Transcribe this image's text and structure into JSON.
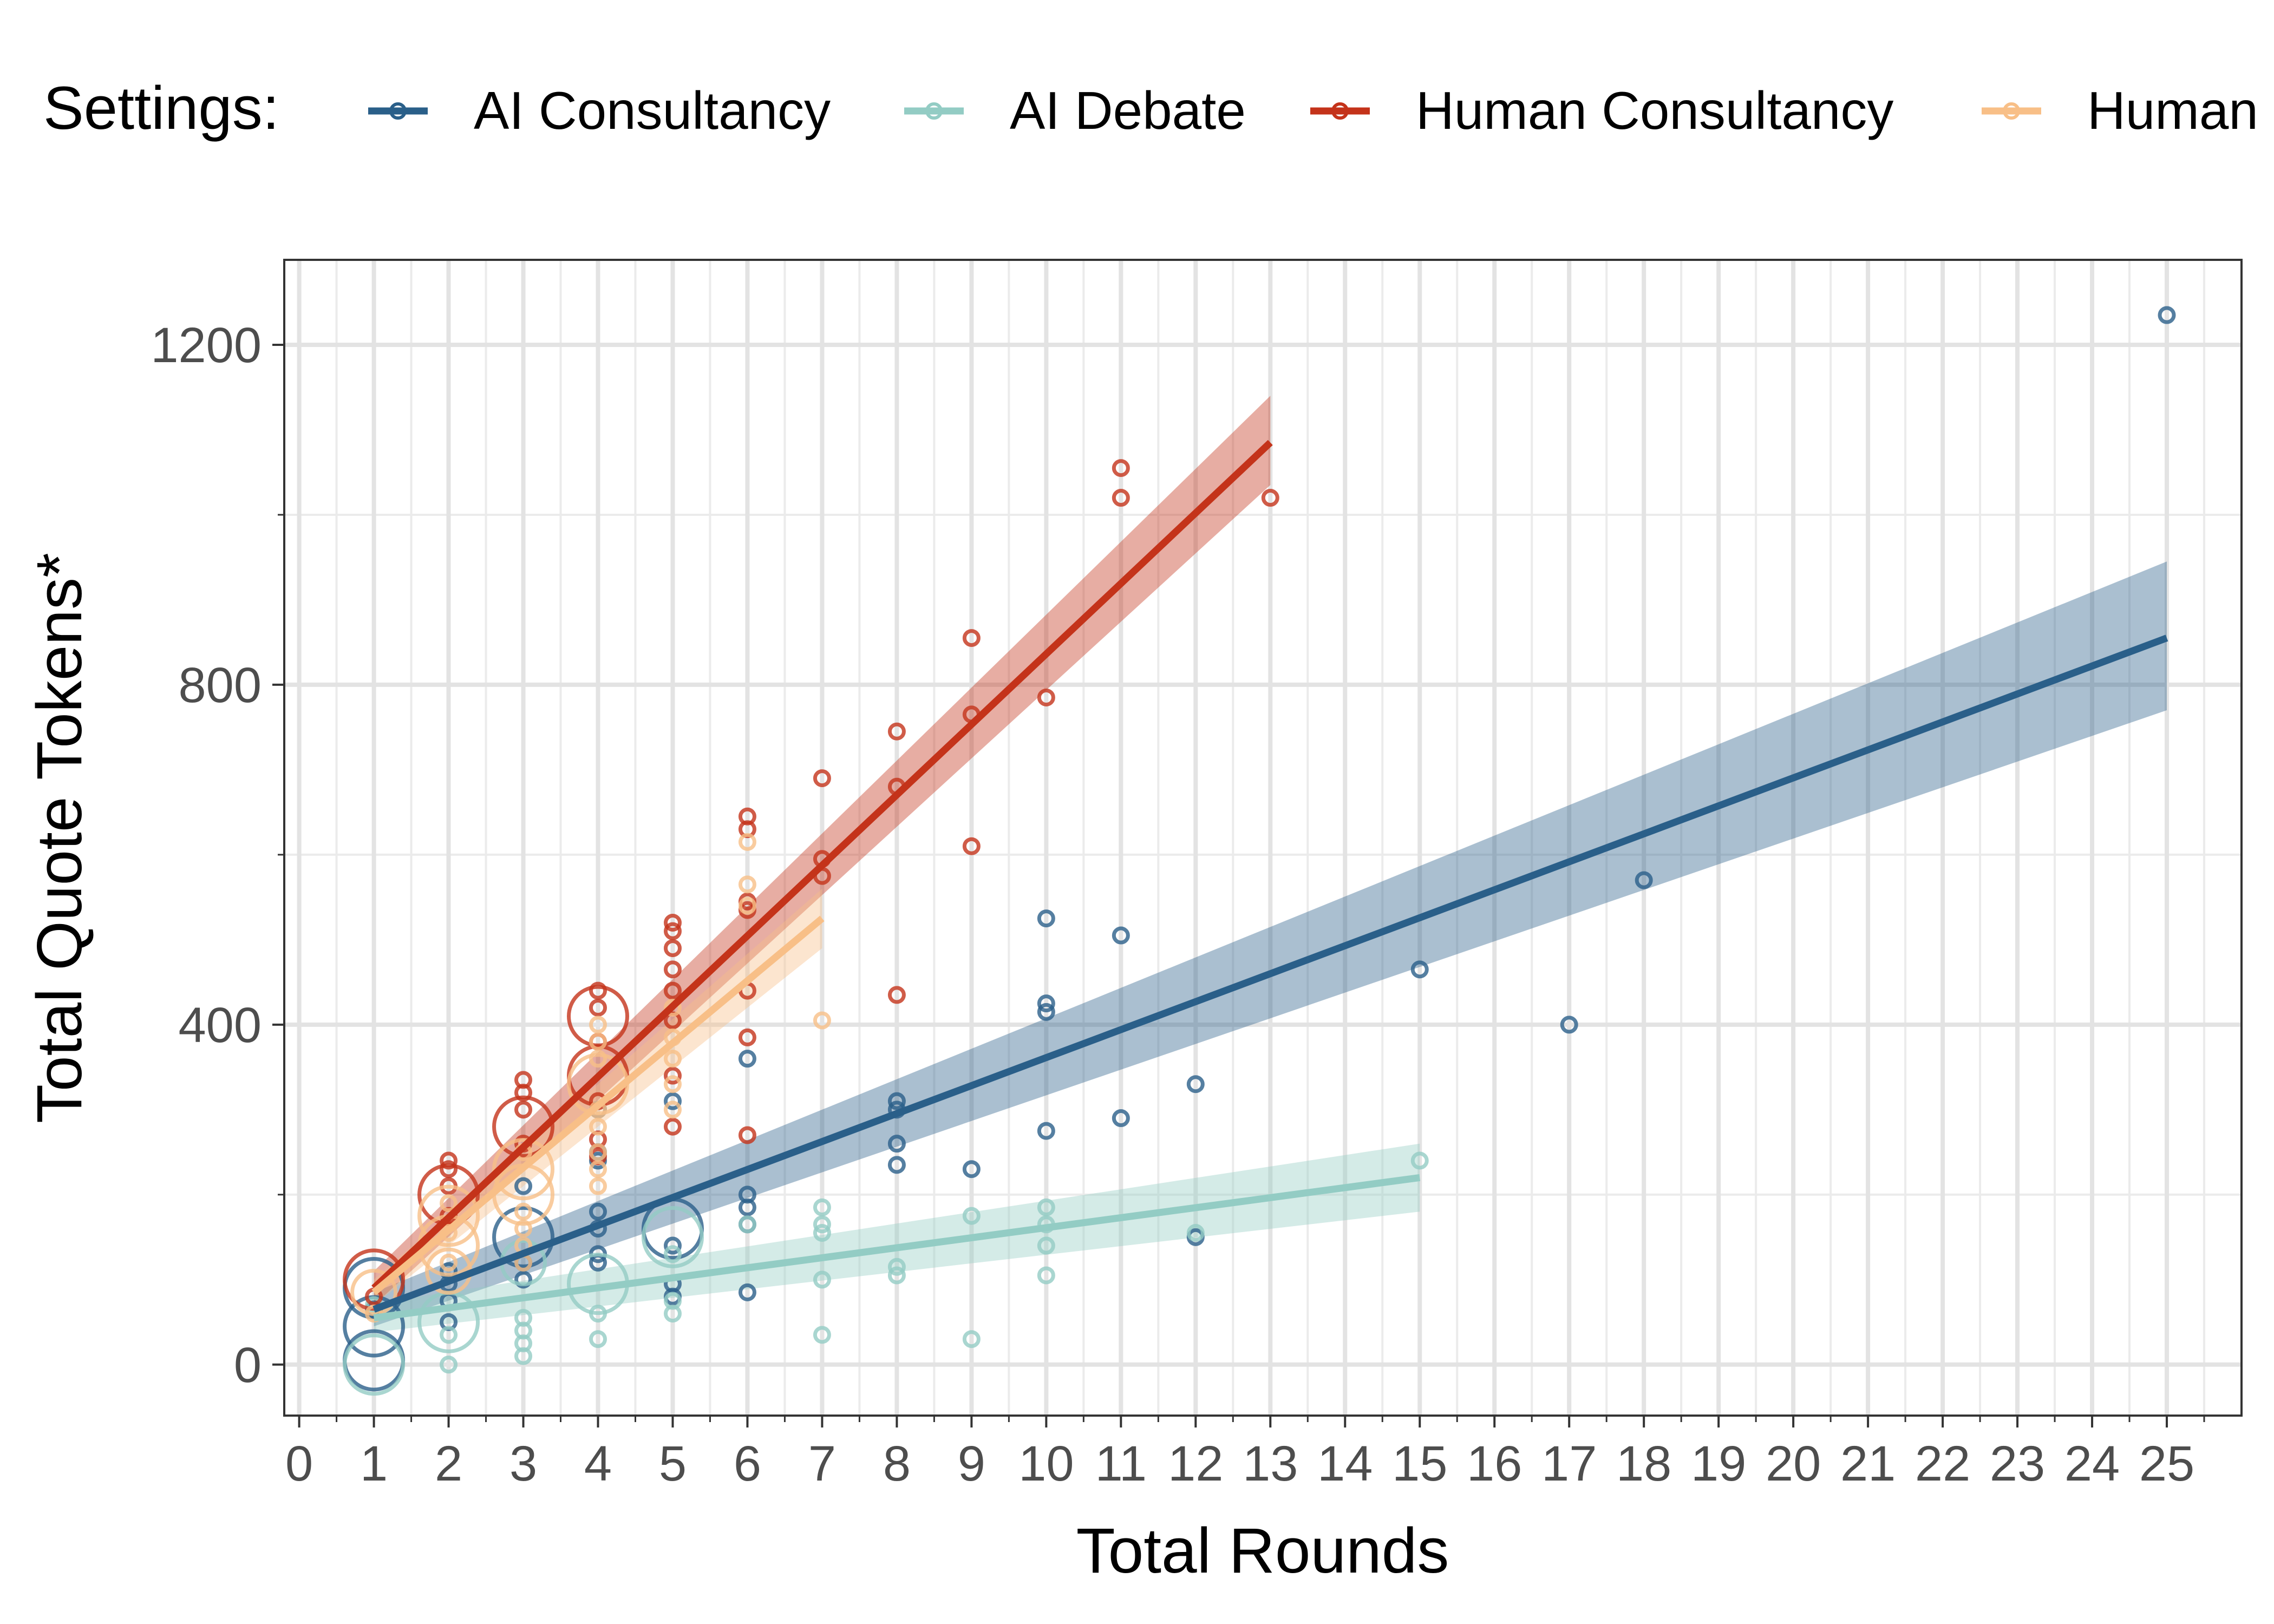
{
  "legend": {
    "title": "Settings:",
    "position": "top",
    "items": [
      {
        "label": "AI Consultancy",
        "color": "#2a5f89"
      },
      {
        "label": "AI Debate",
        "color": "#93ccc4"
      },
      {
        "label": "Human Consultancy",
        "color": "#c4331a"
      },
      {
        "label": "Human",
        "color": "#f8bf87"
      }
    ]
  },
  "chart_data": {
    "type": "scatter",
    "xlabel": "Total Rounds",
    "ylabel": "Total Quote Tokens*",
    "xlim": [
      -0.2,
      26
    ],
    "ylim": [
      -60,
      1300
    ],
    "x_ticks": [
      "0",
      "1",
      "2",
      "3",
      "4",
      "5",
      "6",
      "7",
      "8",
      "9",
      "10",
      "11",
      "12",
      "13",
      "14",
      "15",
      "16",
      "17",
      "18",
      "19",
      "20",
      "21",
      "22",
      "23",
      "24",
      "25"
    ],
    "y_ticks": [
      0,
      400,
      800,
      1200
    ],
    "grid": true,
    "series": [
      {
        "name": "AI Consultancy",
        "color": "#2a5f89",
        "fit": {
          "x": [
            1,
            25
          ],
          "y": [
            65,
            855
          ],
          "lower": [
            45,
            770
          ],
          "upper": [
            85,
            945
          ]
        },
        "points": [
          [
            1,
            5,
            3
          ],
          [
            1,
            45,
            3
          ],
          [
            1,
            65,
            1
          ],
          [
            1,
            90,
            3
          ],
          [
            2,
            95,
            1
          ],
          [
            2,
            110,
            1
          ],
          [
            2,
            50,
            1
          ],
          [
            2,
            75,
            1
          ],
          [
            3,
            150,
            3
          ],
          [
            3,
            120,
            1
          ],
          [
            3,
            210,
            1
          ],
          [
            3,
            100,
            1
          ],
          [
            4,
            240,
            1
          ],
          [
            4,
            250,
            1
          ],
          [
            4,
            180,
            1
          ],
          [
            4,
            160,
            1
          ],
          [
            4,
            130,
            1
          ],
          [
            4,
            120,
            1
          ],
          [
            4,
            300,
            1
          ],
          [
            5,
            140,
            1
          ],
          [
            5,
            160,
            3
          ],
          [
            5,
            310,
            1
          ],
          [
            5,
            80,
            1
          ],
          [
            5,
            95,
            1
          ],
          [
            6,
            360,
            1
          ],
          [
            6,
            200,
            1
          ],
          [
            6,
            185,
            1
          ],
          [
            6,
            165,
            1
          ],
          [
            6,
            85,
            1
          ],
          [
            8,
            310,
            1
          ],
          [
            8,
            300,
            1
          ],
          [
            8,
            260,
            1
          ],
          [
            8,
            235,
            1
          ],
          [
            9,
            230,
            1
          ],
          [
            10,
            525,
            1
          ],
          [
            10,
            425,
            1
          ],
          [
            10,
            415,
            1
          ],
          [
            10,
            275,
            1
          ],
          [
            11,
            505,
            1
          ],
          [
            11,
            290,
            1
          ],
          [
            12,
            330,
            1
          ],
          [
            12,
            150,
            1
          ],
          [
            15,
            465,
            1
          ],
          [
            17,
            400,
            1
          ],
          [
            18,
            570,
            1
          ],
          [
            25,
            1235,
            1
          ]
        ]
      },
      {
        "name": "AI Debate",
        "color": "#93ccc4",
        "fit": {
          "x": [
            1,
            15
          ],
          "y": [
            55,
            220
          ],
          "lower": [
            38,
            180
          ],
          "upper": [
            72,
            260
          ]
        },
        "points": [
          [
            1,
            0,
            3
          ],
          [
            1,
            70,
            1
          ],
          [
            2,
            50,
            3
          ],
          [
            2,
            0,
            1
          ],
          [
            2,
            35,
            1
          ],
          [
            3,
            10,
            1
          ],
          [
            3,
            25,
            1
          ],
          [
            3,
            40,
            1
          ],
          [
            3,
            55,
            1
          ],
          [
            3,
            120,
            2
          ],
          [
            4,
            95,
            3
          ],
          [
            4,
            30,
            1
          ],
          [
            4,
            60,
            1
          ],
          [
            5,
            60,
            1
          ],
          [
            5,
            75,
            1
          ],
          [
            5,
            130,
            1
          ],
          [
            5,
            150,
            3
          ],
          [
            6,
            165,
            1
          ],
          [
            7,
            185,
            1
          ],
          [
            7,
            155,
            1
          ],
          [
            7,
            100,
            1
          ],
          [
            7,
            35,
            1
          ],
          [
            7,
            165,
            1
          ],
          [
            8,
            105,
            1
          ],
          [
            8,
            115,
            1
          ],
          [
            9,
            30,
            1
          ],
          [
            9,
            175,
            1
          ],
          [
            10,
            185,
            1
          ],
          [
            10,
            140,
            1
          ],
          [
            10,
            105,
            1
          ],
          [
            10,
            165,
            1
          ],
          [
            12,
            155,
            1
          ],
          [
            15,
            240,
            1
          ]
        ]
      },
      {
        "name": "Human Consultancy",
        "color": "#c4331a",
        "fit": {
          "x": [
            1,
            13
          ],
          "y": [
            90,
            1085
          ],
          "lower": [
            70,
            1035
          ],
          "upper": [
            110,
            1140
          ]
        },
        "points": [
          [
            1,
            100,
            3
          ],
          [
            1,
            80,
            1
          ],
          [
            2,
            200,
            3
          ],
          [
            2,
            240,
            1
          ],
          [
            2,
            230,
            1
          ],
          [
            2,
            175,
            1
          ],
          [
            2,
            210,
            1
          ],
          [
            3,
            280,
            3
          ],
          [
            3,
            300,
            1
          ],
          [
            3,
            320,
            1
          ],
          [
            3,
            335,
            1
          ],
          [
            3,
            260,
            1
          ],
          [
            4,
            410,
            3
          ],
          [
            4,
            340,
            3
          ],
          [
            4,
            440,
            1
          ],
          [
            4,
            420,
            1
          ],
          [
            4,
            380,
            1
          ],
          [
            4,
            310,
            1
          ],
          [
            4,
            265,
            1
          ],
          [
            4,
            245,
            1
          ],
          [
            5,
            520,
            1
          ],
          [
            5,
            510,
            1
          ],
          [
            5,
            490,
            1
          ],
          [
            5,
            465,
            1
          ],
          [
            5,
            440,
            1
          ],
          [
            5,
            405,
            1
          ],
          [
            5,
            340,
            1
          ],
          [
            5,
            280,
            1
          ],
          [
            6,
            645,
            1
          ],
          [
            6,
            630,
            1
          ],
          [
            6,
            545,
            1
          ],
          [
            6,
            535,
            1
          ],
          [
            6,
            440,
            1
          ],
          [
            6,
            385,
            1
          ],
          [
            6,
            270,
            1
          ],
          [
            7,
            690,
            1
          ],
          [
            7,
            595,
            1
          ],
          [
            7,
            575,
            1
          ],
          [
            8,
            745,
            1
          ],
          [
            8,
            680,
            1
          ],
          [
            8,
            435,
            1
          ],
          [
            9,
            855,
            1
          ],
          [
            9,
            765,
            1
          ],
          [
            9,
            610,
            1
          ],
          [
            10,
            785,
            1
          ],
          [
            11,
            1055,
            1
          ],
          [
            11,
            1020,
            1
          ],
          [
            13,
            1020,
            1
          ]
        ]
      },
      {
        "name": "Human",
        "color": "#f8bf87",
        "fit": {
          "x": [
            1,
            7
          ],
          "y": [
            85,
            525
          ],
          "lower": [
            70,
            490
          ],
          "upper": [
            100,
            560
          ]
        },
        "points": [
          [
            1,
            85,
            2
          ],
          [
            1,
            60,
            1
          ],
          [
            2,
            175,
            3
          ],
          [
            2,
            140,
            3
          ],
          [
            2,
            120,
            1
          ],
          [
            2,
            155,
            1
          ],
          [
            2,
            190,
            1
          ],
          [
            2,
            110,
            2
          ],
          [
            3,
            200,
            3
          ],
          [
            3,
            230,
            3
          ],
          [
            3,
            160,
            1
          ],
          [
            3,
            140,
            1
          ],
          [
            3,
            250,
            1
          ],
          [
            3,
            120,
            1
          ],
          [
            3,
            180,
            1
          ],
          [
            4,
            330,
            3
          ],
          [
            4,
            360,
            1
          ],
          [
            4,
            300,
            1
          ],
          [
            4,
            280,
            1
          ],
          [
            4,
            250,
            1
          ],
          [
            4,
            230,
            1
          ],
          [
            4,
            210,
            1
          ],
          [
            4,
            380,
            1
          ],
          [
            4,
            400,
            1
          ],
          [
            5,
            420,
            1
          ],
          [
            5,
            385,
            1
          ],
          [
            5,
            360,
            1
          ],
          [
            5,
            330,
            1
          ],
          [
            5,
            300,
            1
          ],
          [
            6,
            615,
            1
          ],
          [
            6,
            565,
            1
          ],
          [
            6,
            540,
            1
          ],
          [
            7,
            405,
            1
          ]
        ]
      }
    ]
  }
}
